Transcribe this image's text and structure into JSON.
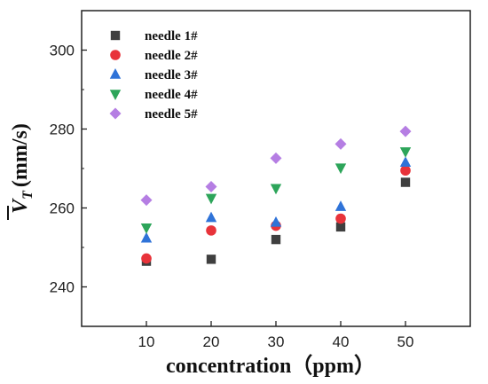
{
  "chart_data": {
    "type": "scatter",
    "title": "",
    "xlabel": "concentration（ppm）",
    "ylabel_main": "V",
    "ylabel_sub": "T",
    "ylabel_unit": "(mm/s)",
    "x": [
      10,
      20,
      30,
      40,
      50
    ],
    "xlim": [
      0,
      60
    ],
    "ylim": [
      230,
      310
    ],
    "xticks": [
      10,
      20,
      30,
      40,
      50
    ],
    "yticks": [
      240,
      260,
      280,
      300
    ],
    "grid": false,
    "legend_position": "top-left",
    "series": [
      {
        "name": "needle 1#",
        "marker": "square",
        "color": "#3f3f3f",
        "values": [
          246.5,
          247,
          252,
          255.2,
          266.5
        ]
      },
      {
        "name": "needle 2#",
        "marker": "circle",
        "color": "#e8333a",
        "values": [
          247.2,
          254.3,
          255.5,
          257.3,
          269.5
        ]
      },
      {
        "name": "needle 3#",
        "marker": "triangle-up",
        "color": "#2f73d8",
        "values": [
          252.3,
          257.5,
          256.3,
          260.3,
          271.5
        ]
      },
      {
        "name": "needle 4#",
        "marker": "triangle-down",
        "color": "#2da55a",
        "values": [
          255,
          262.5,
          265,
          270.2,
          274.3
        ]
      },
      {
        "name": "needle 5#",
        "marker": "diamond",
        "color": "#b57ee3",
        "values": [
          262,
          265.4,
          272.6,
          276.2,
          279.4
        ]
      }
    ]
  }
}
